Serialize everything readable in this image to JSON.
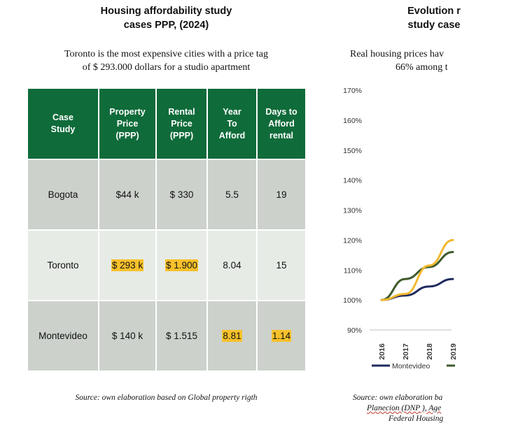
{
  "left": {
    "title_lines": [
      "Housing affordability study",
      "cases PPP, (2024)"
    ],
    "subtitle_lines": [
      "Toronto is the most expensive cities with a price tag",
      "of $ 293.000 dollars for a studio apartment"
    ],
    "table": {
      "headers": [
        [
          "Case",
          "Study"
        ],
        [
          "Property",
          "Price",
          "(PPP)"
        ],
        [
          "Rental",
          "Price",
          "(PPP)"
        ],
        [
          "Year",
          "To",
          "Afford"
        ],
        [
          "Days to",
          "Afford",
          "rental"
        ]
      ],
      "rows": [
        {
          "city": "Bogota",
          "property": "$44 k",
          "rental": "$ 330",
          "years": "5.5",
          "days": "19"
        },
        {
          "city": "Toronto",
          "property": "$ 293 k",
          "rental": "$ 1.900",
          "years": "8.04",
          "days": "15"
        },
        {
          "city": "Montevideo",
          "property": "$ 140 k",
          "rental": "$ 1.515",
          "years": "8.81",
          "days": "1.14"
        }
      ]
    },
    "source": "Source: own elaboration based on Global property rigth",
    "highlight_color": "#f8c12b",
    "header_color": "#0f6b3a"
  },
  "right": {
    "title_lines": [
      "Evolution r",
      "study case"
    ],
    "subtitle_lines": [
      "Real housing prices hav",
      "66% among t"
    ],
    "source_lines": [
      "Source: own elaboration ba",
      "Planecion (DNP ), Age",
      "Federal Housing "
    ],
    "chart_data": {
      "type": "line",
      "title": "",
      "xlabel": "",
      "ylabel": "",
      "y_ticks": [
        "170%",
        "160%",
        "150%",
        "140%",
        "130%",
        "120%",
        "110%",
        "100%",
        "90%"
      ],
      "ylim": [
        90,
        170
      ],
      "x_ticks": [
        "2016",
        "2017",
        "2018",
        "2019"
      ],
      "x": [
        2016,
        2017,
        2018,
        2019
      ],
      "series": [
        {
          "name": "Montevideo",
          "color": "#1f2a5e",
          "values": [
            100,
            101.5,
            104.5,
            107
          ]
        },
        {
          "name": "",
          "color": "#3e5a2a",
          "values": [
            100,
            107,
            111,
            116
          ]
        },
        {
          "name": "",
          "color": "#f2b82e",
          "values": [
            100,
            102,
            111.5,
            120
          ]
        }
      ],
      "legend_position": "bottom"
    }
  }
}
